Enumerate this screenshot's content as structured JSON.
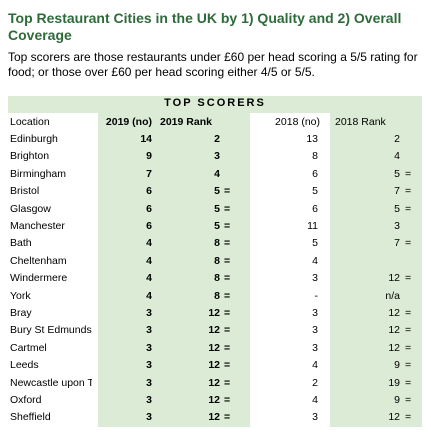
{
  "header": {
    "title": "Top Restaurant Cities in the UK by 1) Quality and 2) Overall Coverage",
    "subtitle": "Top scorers are those restaurants under £60 per head scoring a 5/5 rating for food; or those over £60 per head scoring either 4/5 or 5/5."
  },
  "table": {
    "group_header": "TOP SCORERS",
    "columns": [
      "Location",
      "2019 (no)",
      "2019 Rank",
      "2018 (no)",
      "2018 Rank"
    ],
    "rows": [
      {
        "location": "Edinburgh",
        "n2019": 14,
        "rank2019": 2,
        "n2018": 13,
        "rank2018": 2
      },
      {
        "location": "Brighton",
        "n2019": 9,
        "rank2019": 3,
        "n2018": 8,
        "rank2018": 4
      },
      {
        "location": "Birmingham",
        "n2019": 7,
        "rank2019": 4,
        "n2018": 6,
        "rank2018": 5,
        "tie2018": "="
      },
      {
        "location": "Bristol",
        "n2019": 6,
        "rank2019": 5,
        "tie2019": "=",
        "n2018": 5,
        "rank2018": 7,
        "tie2018": "="
      },
      {
        "location": "Glasgow",
        "n2019": 6,
        "rank2019": 5,
        "tie2019": "=",
        "n2018": 6,
        "rank2018": 5,
        "tie2018": "="
      },
      {
        "location": "Manchester",
        "n2019": 6,
        "rank2019": 5,
        "tie2019": "=",
        "n2018": 11,
        "rank2018": 3
      },
      {
        "location": "Bath",
        "n2019": 4,
        "rank2019": 8,
        "tie2019": "=",
        "n2018": 5,
        "rank2018": 7,
        "tie2018": "="
      },
      {
        "location": "Cheltenham",
        "n2019": 4,
        "rank2019": 8,
        "tie2019": "=",
        "n2018": 4
      },
      {
        "location": "Windermere",
        "n2019": 4,
        "rank2019": 8,
        "tie2019": "=",
        "n2018": 3,
        "rank2018": 12,
        "tie2018": "="
      },
      {
        "location": "York",
        "n2019": 4,
        "rank2019": 8,
        "tie2019": "=",
        "n2018": "-",
        "rank2018": "n/a"
      },
      {
        "location": "Bray",
        "n2019": 3,
        "rank2019": 12,
        "tie2019": "=",
        "n2018": 3,
        "rank2018": 12,
        "tie2018": "="
      },
      {
        "location": "Bury St Edmunds",
        "n2019": 3,
        "rank2019": 12,
        "tie2019": "=",
        "n2018": 3,
        "rank2018": 12,
        "tie2018": "="
      },
      {
        "location": "Cartmel",
        "n2019": 3,
        "rank2019": 12,
        "tie2019": "=",
        "n2018": 3,
        "rank2018": 12,
        "tie2018": "="
      },
      {
        "location": "Leeds",
        "n2019": 3,
        "rank2019": 12,
        "tie2019": "=",
        "n2018": 4,
        "rank2018": 9,
        "tie2018": "="
      },
      {
        "location": "Newcastle upon Tyne",
        "n2019": 3,
        "rank2019": 12,
        "tie2019": "=",
        "n2018": 2,
        "rank2018": 19,
        "tie2018": "="
      },
      {
        "location": "Oxford",
        "n2019": 3,
        "rank2019": 12,
        "tie2019": "=",
        "n2018": 4,
        "rank2018": 9,
        "tie2018": "="
      },
      {
        "location": "Sheffield",
        "n2019": 3,
        "rank2019": 12,
        "tie2019": "=",
        "n2018": 3,
        "rank2018": 12,
        "tie2018": "="
      }
    ]
  }
}
